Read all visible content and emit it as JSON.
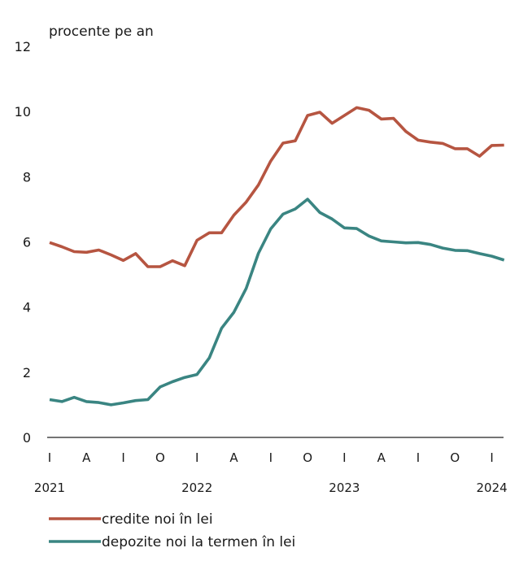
{
  "chart_data": {
    "type": "line",
    "ylabel": "procente pe an",
    "ylim": [
      0,
      12
    ],
    "yticks": [
      0,
      2,
      4,
      6,
      8,
      10,
      12
    ],
    "grid": false,
    "legend_position": "bottom-left",
    "x_month_labels": [
      "I",
      "A",
      "I",
      "O",
      "I",
      "A",
      "I",
      "O",
      "I",
      "A",
      "I",
      "O",
      "I"
    ],
    "x_year_labels": [
      "2021",
      "2022",
      "2023",
      "2024"
    ],
    "x_start": "2021-01",
    "series": [
      {
        "name": "credite noi în lei",
        "color": "#b65541",
        "values": [
          5.98,
          5.85,
          5.7,
          5.68,
          5.75,
          5.6,
          5.43,
          5.64,
          5.24,
          5.24,
          5.42,
          5.27,
          6.05,
          6.28,
          6.28,
          6.82,
          7.22,
          7.75,
          8.48,
          9.03,
          9.1,
          9.88,
          9.98,
          9.64,
          9.88,
          10.12,
          10.04,
          9.77,
          9.79,
          9.39,
          9.12,
          9.06,
          9.02,
          8.86,
          8.86,
          8.63,
          8.96,
          8.97
        ]
      },
      {
        "name": "depozite noi la termen în lei",
        "color": "#3a8582",
        "values": [
          1.16,
          1.1,
          1.23,
          1.1,
          1.07,
          1.0,
          1.06,
          1.13,
          1.16,
          1.55,
          1.71,
          1.84,
          1.93,
          2.44,
          3.35,
          3.84,
          4.57,
          5.65,
          6.4,
          6.85,
          7.01,
          7.31,
          6.9,
          6.7,
          6.43,
          6.41,
          6.18,
          6.03,
          6.0,
          5.97,
          5.98,
          5.92,
          5.81,
          5.74,
          5.73,
          5.64,
          5.56,
          5.44
        ]
      }
    ]
  }
}
